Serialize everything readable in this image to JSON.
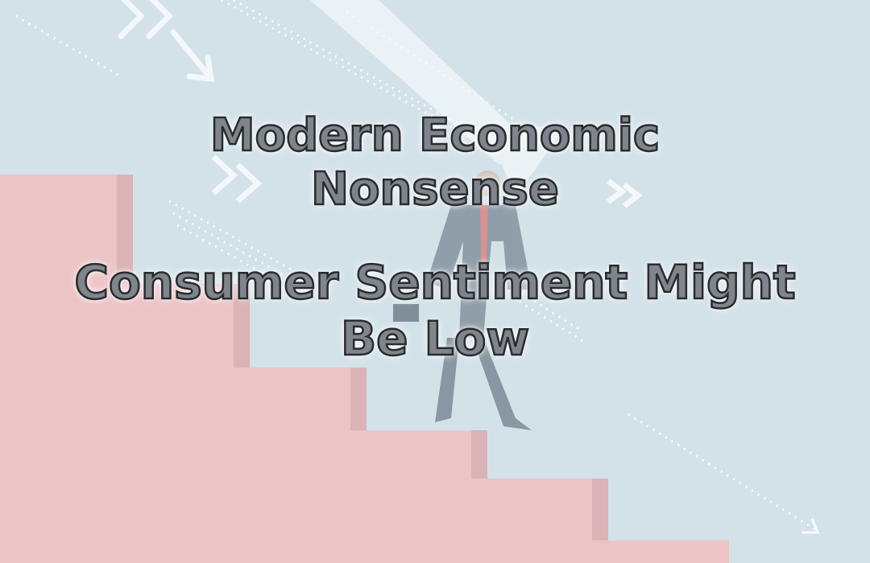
{
  "series_title": [
    "Modern Economic",
    "Nonsense"
  ],
  "headline": [
    "Consumer Sentiment Might",
    "Be Low"
  ],
  "colors": {
    "background": "#d3e2e9",
    "stairs": "#ecc4c6",
    "stairs_shadow": "#d6b1b4",
    "arrows": "#f2f7f9",
    "text_fill": "#7f858c",
    "text_outline": "#2a2b2e",
    "tie": "#e0504a"
  },
  "illustration": {
    "subject": "businessman walking down descending red staircase",
    "icons": [
      "downward-arrow-icon",
      "chevron-right-icon",
      "dotted-trend-line-icon"
    ]
  }
}
